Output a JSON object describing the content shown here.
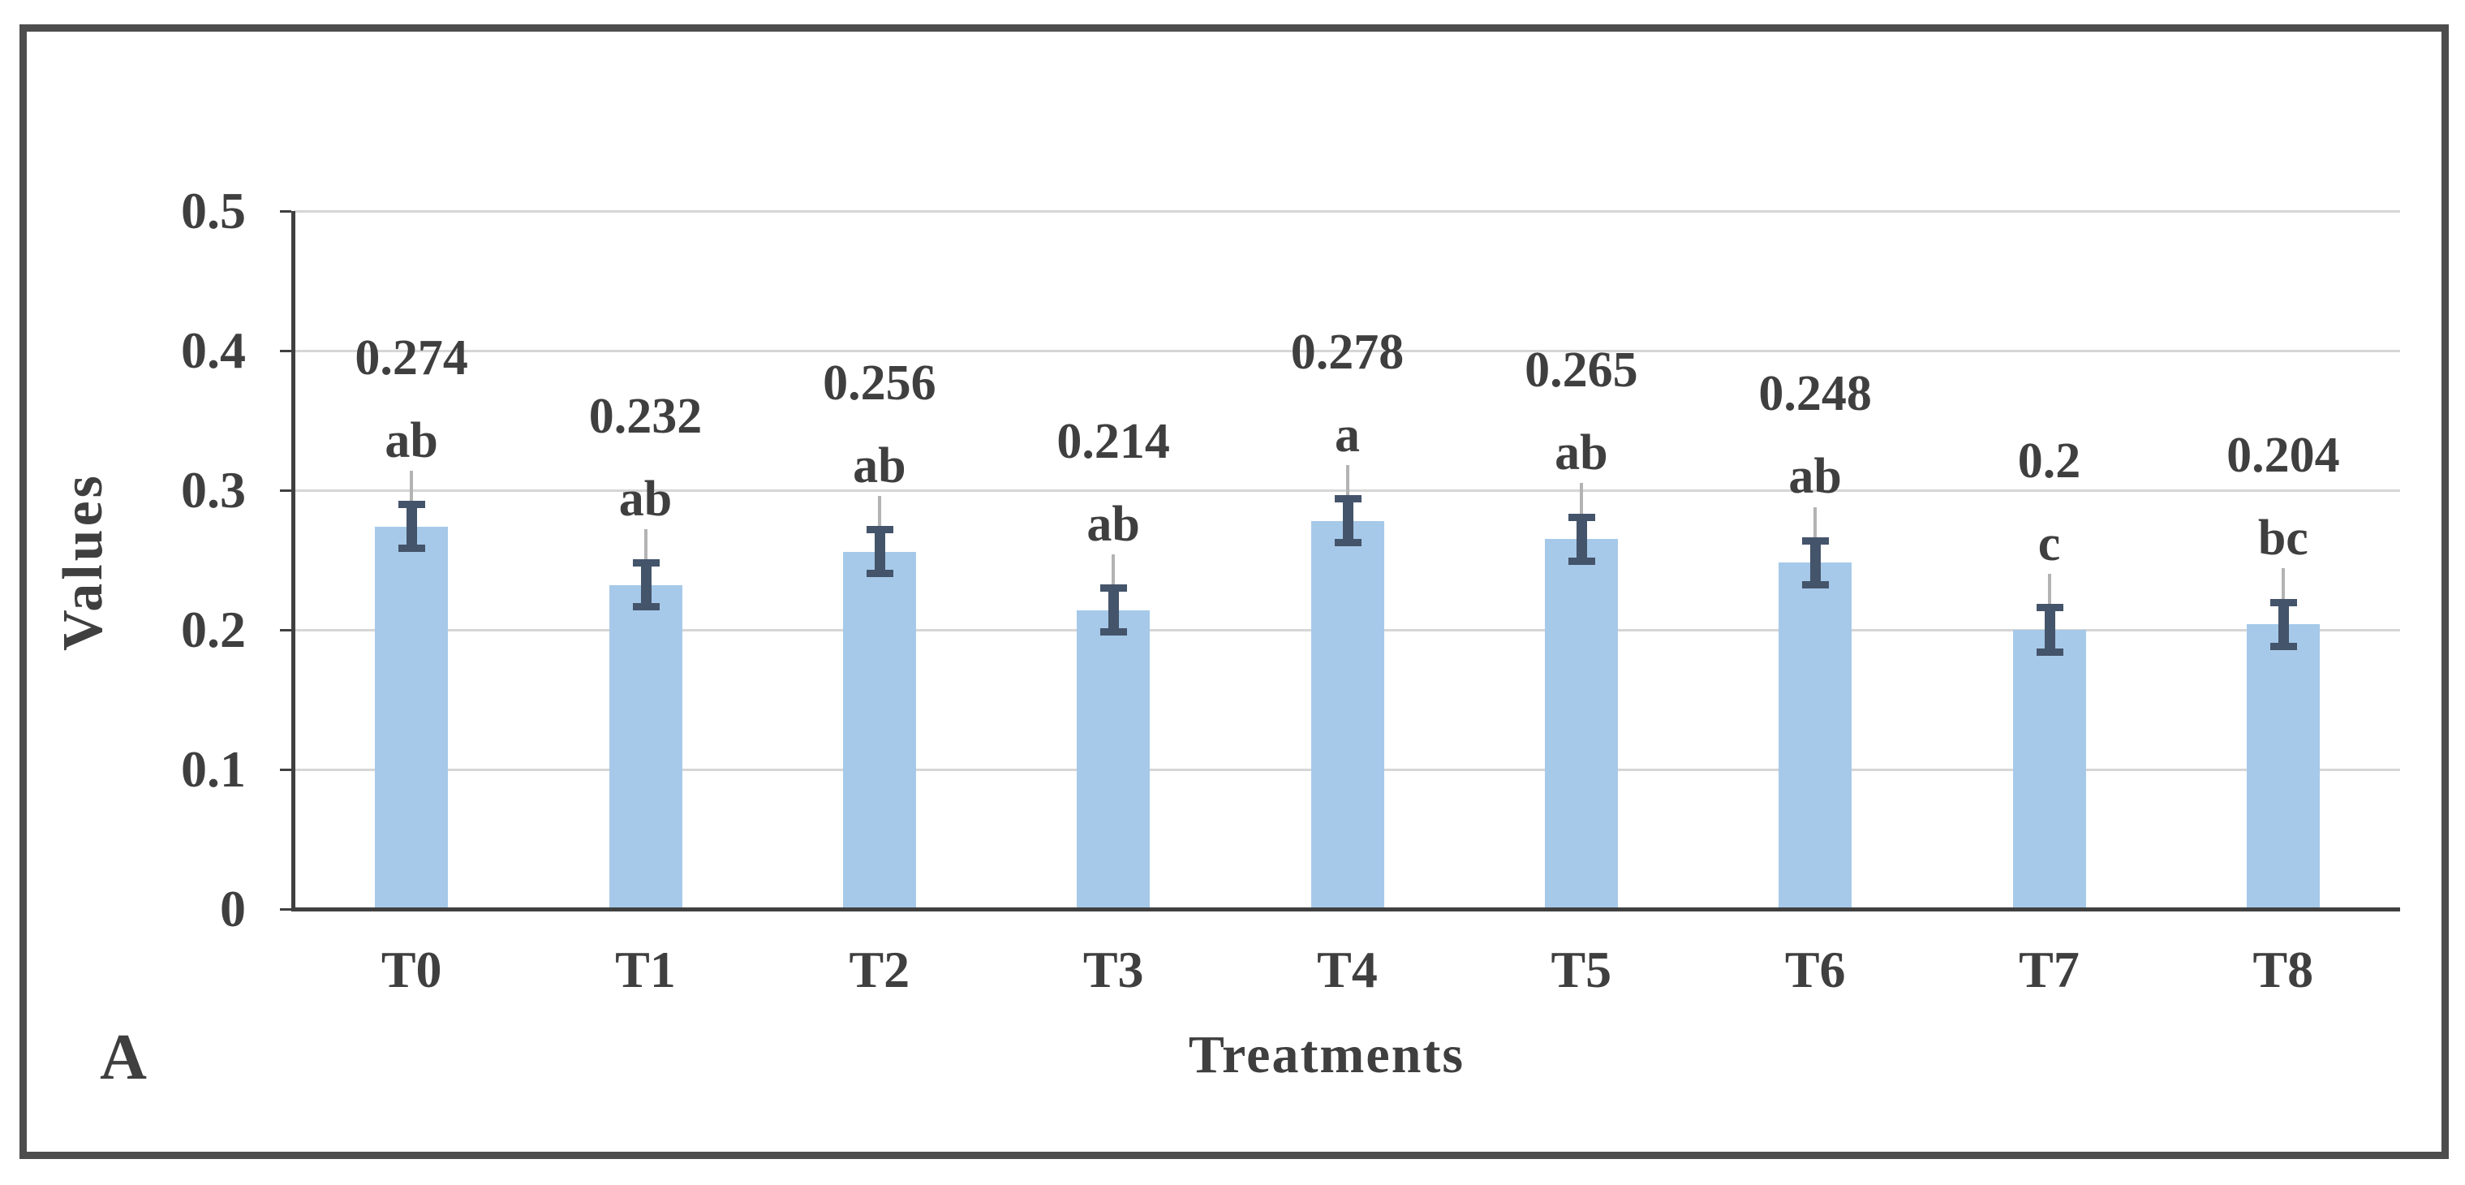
{
  "panel_label": "A",
  "chart_data": {
    "type": "bar",
    "categories": [
      "T0",
      "T1",
      "T2",
      "T3",
      "T4",
      "T5",
      "T6",
      "T7",
      "T8"
    ],
    "values": [
      0.274,
      0.232,
      0.256,
      0.214,
      0.278,
      0.265,
      0.248,
      0.2,
      0.204
    ],
    "value_labels": [
      "0.274",
      "0.232",
      "0.256",
      "0.214",
      "0.278",
      "0.265",
      "0.248",
      "0.2",
      "0.204"
    ],
    "sig_letters": [
      "ab",
      "ab",
      "ab",
      "ab",
      "a",
      "ab",
      "ab",
      "c",
      "bc"
    ],
    "error_bar": 0.016,
    "whisker_above": 0.04,
    "whisker_below": 0.016,
    "title": "",
    "xlabel": "Treatments",
    "ylabel": "Values",
    "ylim": [
      0,
      0.5
    ],
    "ytick_step": 0.1,
    "ytick_labels": [
      "0",
      "0.1",
      "0.2",
      "0.3",
      "0.4",
      "0.5"
    ],
    "grid": true,
    "legend": "none",
    "colors": {
      "bar": "#A6C9E9",
      "error": "#44546A",
      "whisker": "#B3B3B3",
      "grid": "#D6D6D6",
      "axis": "#404040",
      "text": "#3F3F3F",
      "border": "#4D4D4D",
      "background": "#FFFFFF"
    }
  }
}
